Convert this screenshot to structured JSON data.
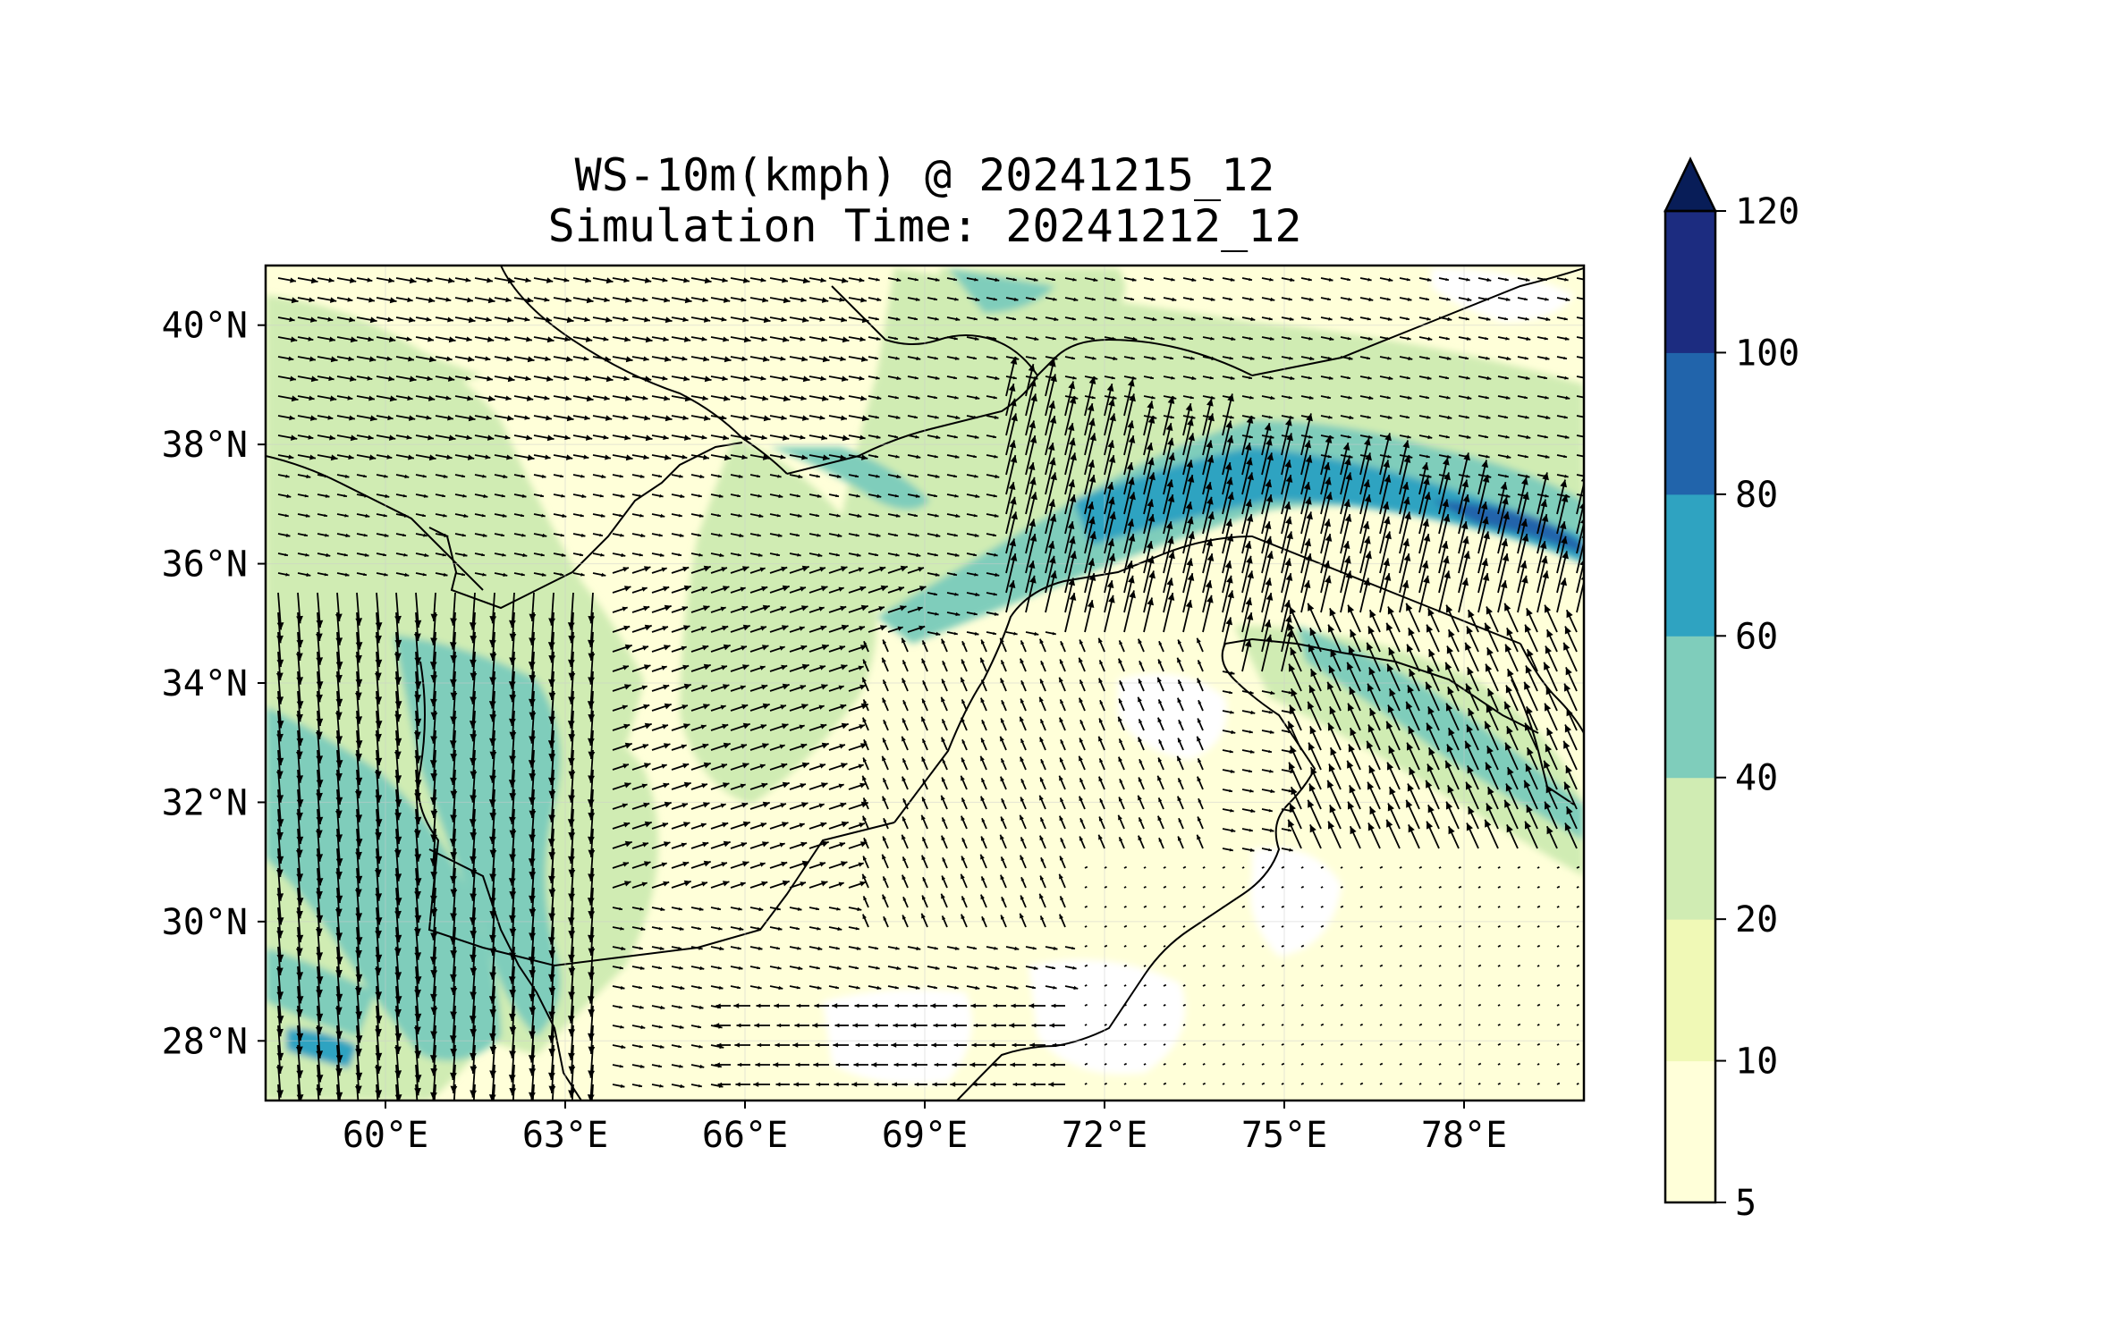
{
  "title": {
    "line1": "WS-10m(kmph) @ 20241215_12",
    "line2": "Simulation Time: 20241212_12"
  },
  "map": {
    "lon_range": [
      58,
      80
    ],
    "lat_range": [
      27,
      41
    ],
    "xticks": [
      {
        "value": 60,
        "label": "60°E"
      },
      {
        "value": 63,
        "label": "63°E"
      },
      {
        "value": 66,
        "label": "66°E"
      },
      {
        "value": 69,
        "label": "69°E"
      },
      {
        "value": 72,
        "label": "72°E"
      },
      {
        "value": 75,
        "label": "75°E"
      },
      {
        "value": 78,
        "label": "78°E"
      }
    ],
    "yticks": [
      {
        "value": 28,
        "label": "28°N"
      },
      {
        "value": 30,
        "label": "30°N"
      },
      {
        "value": 32,
        "label": "32°N"
      },
      {
        "value": 34,
        "label": "34°N"
      },
      {
        "value": 36,
        "label": "36°N"
      },
      {
        "value": 38,
        "label": "38°N"
      },
      {
        "value": 40,
        "label": "40°N"
      }
    ],
    "wind_vectors": "dense field of black wind arrows overlaid on filled wind-speed contours",
    "extend": "max"
  },
  "colorbar": {
    "levels": [
      {
        "label": "5",
        "color": "#ffffd9"
      },
      {
        "label": "10",
        "color": "#f0f9b6"
      },
      {
        "label": "20",
        "color": "#d0ecb3"
      },
      {
        "label": "40",
        "color": "#7fcdbb"
      },
      {
        "label": "60",
        "color": "#2fa3c1"
      },
      {
        "label": "80",
        "color": "#2164ab"
      },
      {
        "label": "100",
        "color": "#1c2c80"
      },
      {
        "label": "120",
        "color": null
      }
    ],
    "extend_color": "#081d58"
  }
}
